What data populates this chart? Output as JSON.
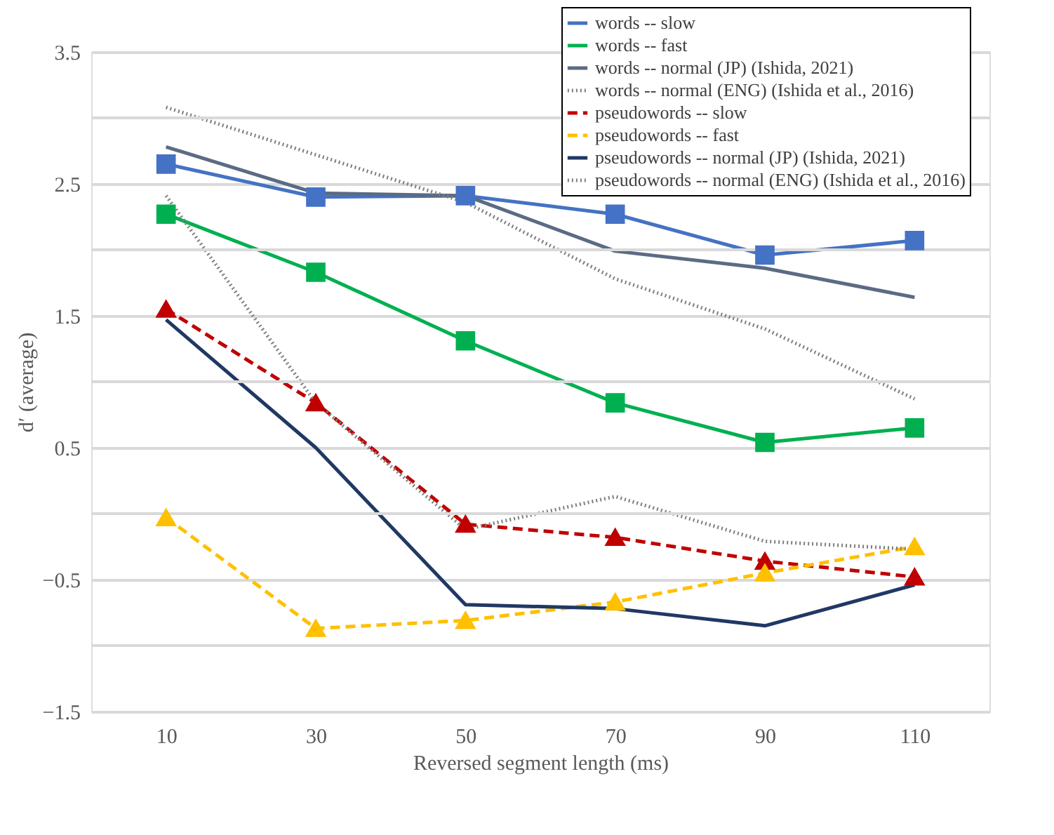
{
  "chart_data": {
    "type": "line",
    "xlabel": "Reversed segment length (ms)",
    "ylabel": "d′ (average)",
    "categories": [
      "10",
      "30",
      "50",
      "70",
      "90",
      "110"
    ],
    "ylim": [
      -1.5,
      3.5
    ],
    "yticks": [
      -1.5,
      -0.5,
      0.5,
      1.5,
      2.5,
      3.5
    ],
    "grid": "y",
    "legend": "top right",
    "series": [
      {
        "name": "words -- slow",
        "color": "#4472c4",
        "marker": "square",
        "line_style": "solid",
        "values": [
          2.65,
          2.4,
          2.41,
          2.27,
          1.96,
          2.07
        ]
      },
      {
        "name": "words -- fast",
        "color": "#00b050",
        "marker": "square",
        "line_style": "solid",
        "values": [
          2.27,
          1.83,
          1.31,
          0.84,
          0.54,
          0.65
        ]
      },
      {
        "name": "words -- normal (JP) (Ishida, 2021)",
        "color": "#5b6b84",
        "marker": "none",
        "line_style": "solid",
        "values": [
          2.78,
          2.43,
          2.41,
          1.99,
          1.86,
          1.64
        ]
      },
      {
        "name": "words -- normal (ENG) (Ishida et al., 2016)",
        "color": "#7f7f7f",
        "marker": "none",
        "line_style": "dotted",
        "values": [
          3.08,
          2.72,
          2.36,
          1.78,
          1.4,
          0.87
        ]
      },
      {
        "name": "pseudowords -- slow",
        "color": "#c00000",
        "marker": "triangle",
        "line_style": "dashed",
        "values": [
          1.55,
          0.84,
          -0.08,
          -0.18,
          -0.36,
          -0.48
        ]
      },
      {
        "name": "pseudowords -- fast",
        "color": "#ffc000",
        "marker": "triangle",
        "line_style": "dashed",
        "values": [
          -0.03,
          -0.87,
          -0.81,
          -0.67,
          -0.45,
          -0.25
        ]
      },
      {
        "name": "pseudowords -- normal (JP) (Ishida, 2021)",
        "color": "#203864",
        "marker": "none",
        "line_style": "solid",
        "values": [
          1.47,
          0.5,
          -0.69,
          -0.72,
          -0.85,
          -0.54
        ]
      },
      {
        "name": "pseudowords -- normal (ENG) (Ishida et al., 2016)",
        "color": "#7f7f7f",
        "marker": "none",
        "line_style": "dotted",
        "values": [
          2.41,
          0.84,
          -0.12,
          0.13,
          -0.21,
          -0.27
        ]
      }
    ]
  }
}
